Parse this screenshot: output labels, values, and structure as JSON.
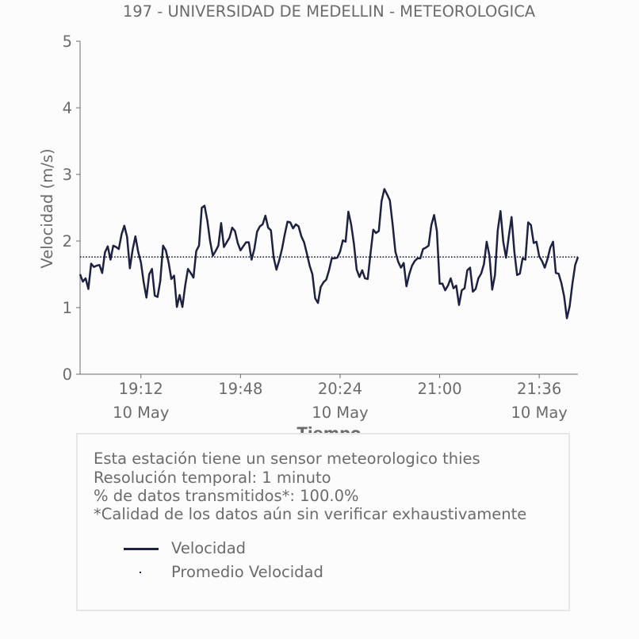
{
  "chart_data": {
    "type": "line",
    "title": "197 - UNIVERSIDAD DE MEDELLIN - METEOROLOGICA",
    "xlabel": "Tiempo",
    "ylabel": "Velocidad (m/s)",
    "ylim": [
      0,
      5
    ],
    "yticks": [
      "0",
      "1",
      "2",
      "3",
      "4",
      "5"
    ],
    "xrange_minutes": [
      "18:50",
      "21:50"
    ],
    "xticks": [
      {
        "time": "19:12",
        "date": "10 May"
      },
      {
        "time": "19:48",
        "date": ""
      },
      {
        "time": "20:24",
        "date": "10 May"
      },
      {
        "time": "21:00",
        "date": ""
      },
      {
        "time": "21:36",
        "date": "10 May"
      }
    ],
    "grid": false,
    "series": [
      {
        "name": "Velocidad",
        "color": "#1f2142",
        "x_start": "18:50",
        "x_step_minutes": 1,
        "values": [
          1.5,
          1.39,
          1.44,
          1.28,
          1.66,
          1.61,
          1.63,
          1.64,
          1.52,
          1.83,
          1.92,
          1.72,
          1.93,
          1.91,
          1.88,
          2.1,
          2.23,
          2.06,
          1.59,
          1.87,
          2.07,
          1.84,
          1.68,
          1.38,
          1.15,
          1.5,
          1.58,
          1.18,
          1.16,
          1.4,
          1.93,
          1.86,
          1.68,
          1.43,
          1.48,
          1.01,
          1.19,
          1.01,
          1.33,
          1.58,
          1.52,
          1.45,
          1.85,
          1.93,
          2.5,
          2.53,
          2.31,
          2.0,
          1.78,
          1.85,
          1.93,
          2.27,
          1.91,
          1.98,
          2.05,
          2.2,
          2.15,
          1.97,
          1.86,
          1.92,
          1.98,
          1.98,
          1.72,
          1.88,
          2.14,
          2.22,
          2.25,
          2.38,
          2.2,
          2.16,
          1.75,
          1.57,
          1.71,
          1.88,
          2.1,
          2.29,
          2.28,
          2.19,
          2.25,
          2.22,
          2.07,
          1.98,
          1.81,
          1.63,
          1.5,
          1.14,
          1.07,
          1.31,
          1.38,
          1.42,
          1.56,
          1.74,
          1.74,
          1.75,
          1.84,
          2.01,
          1.99,
          2.44,
          2.25,
          1.96,
          1.57,
          1.46,
          1.56,
          1.44,
          1.43,
          1.81,
          2.17,
          2.12,
          2.15,
          2.6,
          2.78,
          2.7,
          2.61,
          2.25,
          1.84,
          1.69,
          1.6,
          1.67,
          1.32,
          1.5,
          1.63,
          1.7,
          1.74,
          1.74,
          1.88,
          1.9,
          1.93,
          2.24,
          2.39,
          2.15,
          1.36,
          1.36,
          1.26,
          1.33,
          1.44,
          1.29,
          1.33,
          1.04,
          1.26,
          1.29,
          1.56,
          1.6,
          1.24,
          1.28,
          1.44,
          1.51,
          1.65,
          1.99,
          1.78,
          1.27,
          1.49,
          2.16,
          2.45,
          1.99,
          1.75,
          2.07,
          2.36,
          1.84,
          1.49,
          1.51,
          1.74,
          1.72,
          2.28,
          2.24,
          1.97,
          1.99,
          1.77,
          1.7,
          1.6,
          1.73,
          1.9,
          1.99,
          1.52,
          1.51,
          1.37,
          1.17,
          0.84,
          1.02,
          1.36,
          1.64,
          1.76
        ]
      },
      {
        "name": "Promedio Velocidad",
        "color": "#1f2142",
        "style": "dotted",
        "values": [
          1.76
        ]
      }
    ]
  },
  "legend_box": {
    "notes": [
      "Esta estación tiene un sensor meteorologico thies",
      "Resolución temporal: 1 minuto",
      "% de datos transmitidos*: 100.0%",
      "*Calidad de los datos aún sin verificar exhaustivamente"
    ],
    "items": [
      {
        "label": "Velocidad",
        "marker": "line"
      },
      {
        "label": "Promedio Velocidad",
        "marker": "dot"
      }
    ]
  }
}
